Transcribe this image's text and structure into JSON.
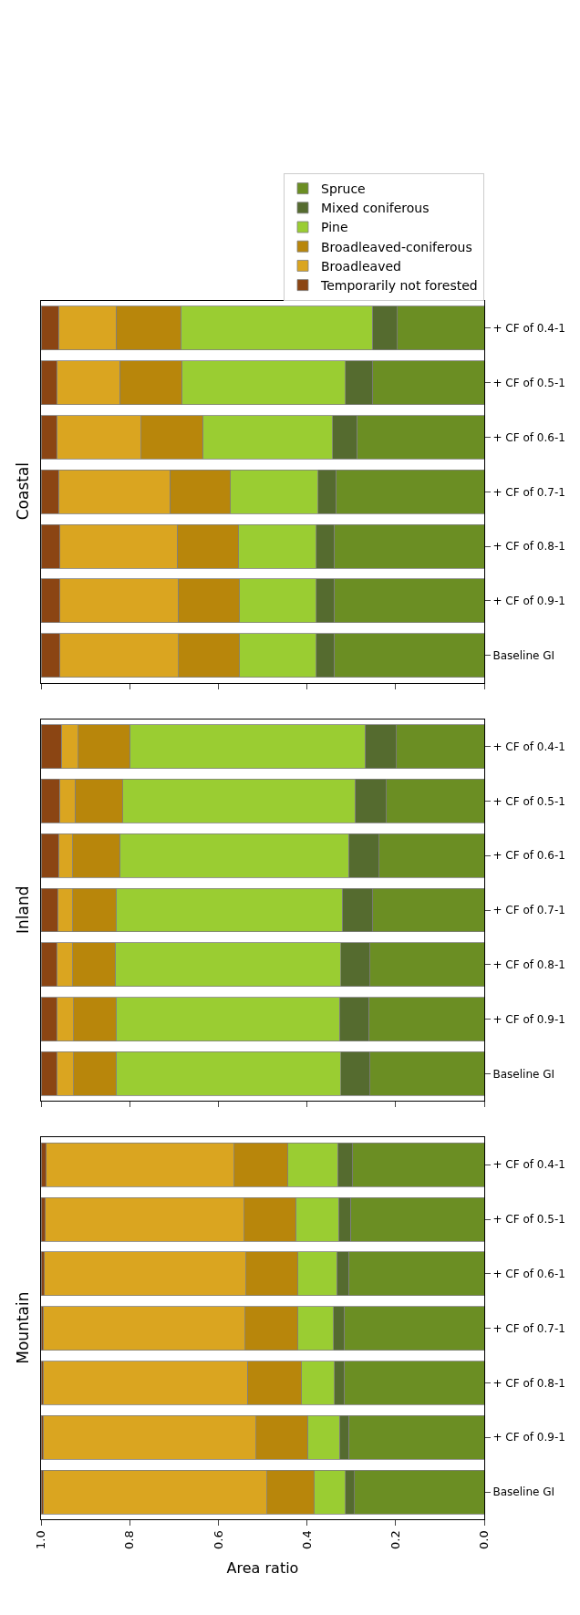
{
  "chart_data": [
    {
      "type": "bar",
      "title": "Coastal",
      "orientation": "horizontal",
      "stacked": true,
      "legend": "top right",
      "tick_labels": "y",
      "xlim": [
        1.0,
        0.0
      ],
      "xticks": [
        1.0,
        0.8,
        0.6,
        0.4,
        0.2,
        0.0
      ],
      "categories": [
        "+ CF of 0.4-1",
        "+ CF of 0.5-1",
        "+ CF of 0.6-1",
        "+ CF of 0.7-1",
        "+ CF of 0.8-1",
        "+ CF of 0.9-1",
        "Baseline GI"
      ],
      "series": [
        {
          "name": "Spruce",
          "color": "#6b8e23",
          "values": [
            0.196,
            0.252,
            0.288,
            0.335,
            0.339,
            0.339,
            0.339
          ]
        },
        {
          "name": "Mixed coniferous",
          "color": "#556b2f",
          "values": [
            0.057,
            0.061,
            0.054,
            0.04,
            0.04,
            0.04,
            0.04
          ]
        },
        {
          "name": "Pine",
          "color": "#9acd32",
          "values": [
            0.432,
            0.37,
            0.293,
            0.198,
            0.175,
            0.173,
            0.173
          ]
        },
        {
          "name": "Broadleaved-coniferous",
          "color": "#b8860b",
          "values": [
            0.146,
            0.14,
            0.139,
            0.136,
            0.139,
            0.139,
            0.138
          ]
        },
        {
          "name": "Broadleaved",
          "color": "#daa520",
          "values": [
            0.129,
            0.142,
            0.191,
            0.251,
            0.264,
            0.266,
            0.267
          ]
        },
        {
          "name": "Temporarily not forested",
          "color": "#8b4513",
          "values": [
            0.04,
            0.035,
            0.035,
            0.04,
            0.043,
            0.043,
            0.043
          ]
        }
      ]
    },
    {
      "type": "bar",
      "title": "Inland",
      "orientation": "horizontal",
      "stacked": true,
      "tick_labels": "y",
      "xlim": [
        1.0,
        0.0
      ],
      "xticks": [
        1.0,
        0.8,
        0.6,
        0.4,
        0.2,
        0.0
      ],
      "categories": [
        "+ CF of 0.4-1",
        "+ CF of 0.5-1",
        "+ CF of 0.6-1",
        "+ CF of 0.7-1",
        "+ CF of 0.8-1",
        "+ CF of 0.9-1",
        "Baseline GI"
      ],
      "series": [
        {
          "color": "#6b8e23",
          "values": [
            0.198,
            0.221,
            0.237,
            0.252,
            0.258,
            0.261,
            0.258
          ]
        },
        {
          "color": "#556b2f",
          "values": [
            0.071,
            0.071,
            0.069,
            0.068,
            0.066,
            0.066,
            0.066
          ]
        },
        {
          "color": "#9acd32",
          "values": [
            0.531,
            0.523,
            0.517,
            0.511,
            0.509,
            0.504,
            0.507
          ]
        },
        {
          "color": "#b8860b",
          "values": [
            0.116,
            0.108,
            0.105,
            0.097,
            0.095,
            0.095,
            0.095
          ]
        },
        {
          "color": "#daa520",
          "values": [
            0.038,
            0.035,
            0.032,
            0.034,
            0.037,
            0.039,
            0.039
          ]
        },
        {
          "color": "#8b4513",
          "values": [
            0.046,
            0.042,
            0.04,
            0.038,
            0.035,
            0.035,
            0.035
          ]
        }
      ]
    },
    {
      "type": "bar",
      "title": "Mountain",
      "xlabel": "Area ratio",
      "orientation": "horizontal",
      "stacked": true,
      "xlim": [
        1.0,
        0.0
      ],
      "xticks": [
        {
          "value": 1.0,
          "label": "1.0"
        },
        0.8,
        0.6,
        0.4,
        0.2,
        {
          "value": 0.0,
          "label": "0.0"
        }
      ],
      "categories": [
        "+ CF of 0.4-1",
        "+ CF of 0.5-1",
        "+ CF of 0.6-1",
        "+ CF of 0.7-1",
        "+ CF of 0.8-1",
        "+ CF of 0.9-1",
        "Baseline GI"
      ],
      "series": [
        {
          "color": "#6b8e23",
          "values": [
            0.297,
            0.302,
            0.306,
            0.316,
            0.316,
            0.306,
            0.293
          ]
        },
        {
          "color": "#556b2f",
          "values": [
            0.034,
            0.027,
            0.027,
            0.024,
            0.022,
            0.021,
            0.02
          ]
        },
        {
          "color": "#9acd32",
          "values": [
            0.112,
            0.096,
            0.087,
            0.08,
            0.074,
            0.072,
            0.07
          ]
        },
        {
          "color": "#b8860b",
          "values": [
            0.121,
            0.117,
            0.118,
            0.12,
            0.122,
            0.116,
            0.107
          ]
        },
        {
          "color": "#daa520",
          "values": [
            0.424,
            0.448,
            0.454,
            0.455,
            0.461,
            0.48,
            0.505
          ]
        },
        {
          "color": "#8b4513",
          "values": [
            0.012,
            0.01,
            0.008,
            0.005,
            0.005,
            0.005,
            0.005
          ]
        }
      ]
    }
  ]
}
